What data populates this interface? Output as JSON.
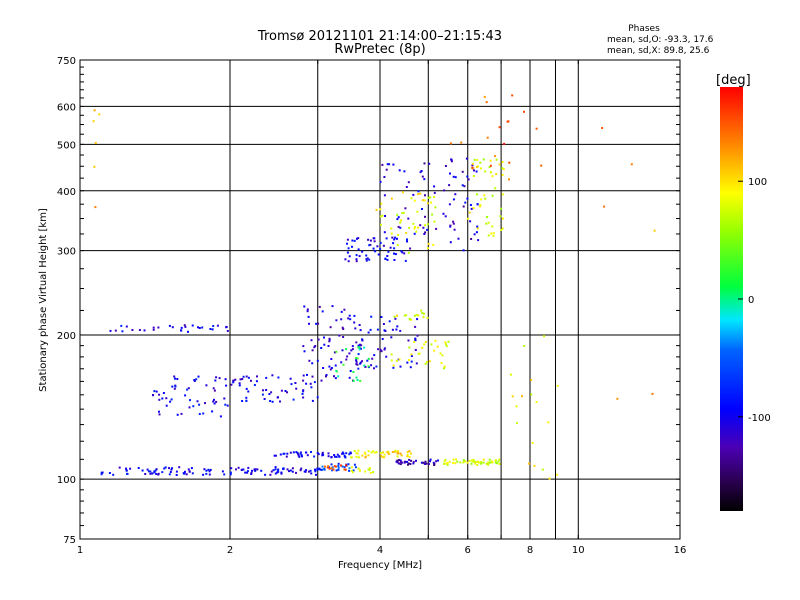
{
  "header": {
    "title": "Tromsø 20121101 21:14:00–21:15:43",
    "subtitle": "RwPretec (8p)"
  },
  "stats": {
    "title": "Phases",
    "line_o": "mean, sd,O: -93.3, 17.6",
    "line_x": "mean, sd,X: 89.8, 25.6"
  },
  "chart_data": {
    "type": "scatter",
    "xlabel": "Frequency [MHz]",
    "ylabel": "Stationary phase Virtual Height [km]",
    "x_scale": "log",
    "y_scale": "log",
    "xlim": [
      1,
      16
    ],
    "ylim": [
      75,
      750
    ],
    "x_ticks": [
      1,
      2,
      4,
      6,
      8,
      10,
      16
    ],
    "x_tick_labels": [
      "1",
      "2",
      "4",
      "6",
      "8",
      "10",
      "16"
    ],
    "x_minor_grid": [
      3,
      5,
      7,
      9
    ],
    "y_ticks": [
      75,
      100,
      200,
      300,
      400,
      500,
      600,
      750
    ],
    "y_tick_labels": [
      "75",
      "100",
      "200",
      "300",
      "400",
      "500",
      "600",
      "750"
    ],
    "grid": true,
    "colorbar": {
      "label": "[deg]",
      "range": [
        -180,
        180
      ],
      "ticks": [
        100,
        0,
        -100
      ],
      "tick_labels": [
        "100",
        "0",
        "-100"
      ]
    },
    "clusters": [
      {
        "name": "o-trace-low",
        "x": [
          1.1,
          3.05
        ],
        "y": [
          102,
          106
        ],
        "phase": -100,
        "n": 120
      },
      {
        "name": "o-trace-low-extension",
        "x": [
          3.05,
          3.6
        ],
        "y": [
          104,
          108
        ],
        "phase": -60,
        "n": 25
      },
      {
        "name": "x-trace-low-red",
        "x": [
          3.1,
          3.45
        ],
        "y": [
          104,
          107
        ],
        "phase": 150,
        "n": 12
      },
      {
        "name": "x-trace-low-yellow",
        "x": [
          3.5,
          3.9
        ],
        "y": [
          103,
          106
        ],
        "phase": 90,
        "n": 12
      },
      {
        "name": "o-trace-112",
        "x": [
          2.45,
          3.5
        ],
        "y": [
          111,
          114
        ],
        "phase": -100,
        "n": 50
      },
      {
        "name": "trace-112-mixed",
        "x": [
          3.5,
          4.7
        ],
        "y": [
          111,
          115
        ],
        "phase": 100,
        "n": 45
      },
      {
        "name": "trace-108-mixed",
        "x": [
          4.3,
          5.3
        ],
        "y": [
          107,
          110
        ],
        "phase": -120,
        "n": 35
      },
      {
        "name": "trace-108-yellow",
        "x": [
          5.3,
          7.0
        ],
        "y": [
          107,
          110
        ],
        "phase": 75,
        "n": 50
      },
      {
        "name": "o-trace-mid-a",
        "x": [
          1.4,
          2.0
        ],
        "y": [
          135,
          165
        ],
        "phase": -100,
        "n": 55
      },
      {
        "name": "o-trace-mid-b",
        "x": [
          2.0,
          3.0
        ],
        "y": [
          145,
          165
        ],
        "phase": -100,
        "n": 55
      },
      {
        "name": "o-trace-mid-c",
        "x": [
          2.8,
          3.9
        ],
        "y": [
          160,
          200
        ],
        "phase": -110,
        "n": 60
      },
      {
        "name": "mid-cyan",
        "x": [
          3.2,
          3.8
        ],
        "y": [
          160,
          190
        ],
        "phase": 10,
        "n": 20
      },
      {
        "name": "o-trace-f1",
        "x": [
          3.5,
          4.8
        ],
        "y": [
          170,
          220
        ],
        "phase": -100,
        "n": 55
      },
      {
        "name": "mid-yellow-a",
        "x": [
          4.2,
          5.6
        ],
        "y": [
          170,
          195
        ],
        "phase": 80,
        "n": 30
      },
      {
        "name": "mid-yellow-b",
        "x": [
          4.2,
          5.0
        ],
        "y": [
          215,
          225
        ],
        "phase": 80,
        "n": 15
      },
      {
        "name": "o-trace-210",
        "x": [
          1.15,
          2.1
        ],
        "y": [
          203,
          210
        ],
        "phase": -100,
        "n": 30
      },
      {
        "name": "o-trace-f2-rise",
        "x": [
          2.8,
          3.6
        ],
        "y": [
          205,
          230
        ],
        "phase": -110,
        "n": 20
      },
      {
        "name": "o-trace-f2",
        "x": [
          3.4,
          4.6
        ],
        "y": [
          285,
          320
        ],
        "phase": -100,
        "n": 60
      },
      {
        "name": "o-trace-f2-upper",
        "x": [
          4.0,
          5.2
        ],
        "y": [
          320,
          460
        ],
        "phase": -110,
        "n": 40
      },
      {
        "name": "o-trace-f2-hi",
        "x": [
          5.3,
          6.3
        ],
        "y": [
          300,
          470
        ],
        "phase": -110,
        "n": 45
      },
      {
        "name": "x-trace-f2",
        "x": [
          3.9,
          5.2
        ],
        "y": [
          290,
          400
        ],
        "phase": 85,
        "n": 45
      },
      {
        "name": "x-trace-f2-hi",
        "x": [
          6.0,
          7.1
        ],
        "y": [
          320,
          470
        ],
        "phase": 80,
        "n": 50
      },
      {
        "name": "scatter-high",
        "x": [
          5.5,
          8.5
        ],
        "y": [
          420,
          640
        ],
        "phase": 150,
        "n": 18
      },
      {
        "name": "scatter-low-f",
        "x": [
          7.2,
          9.4
        ],
        "y": [
          100,
          200
        ],
        "phase": 90,
        "n": 18
      },
      {
        "name": "edge-left",
        "x": [
          1.05,
          1.1
        ],
        "y": [
          330,
          610
        ],
        "phase": 110,
        "n": 6
      },
      {
        "name": "edge-right",
        "x": [
          10.5,
          15.5
        ],
        "y": [
          130,
          650
        ],
        "phase": 130,
        "n": 6
      }
    ]
  }
}
